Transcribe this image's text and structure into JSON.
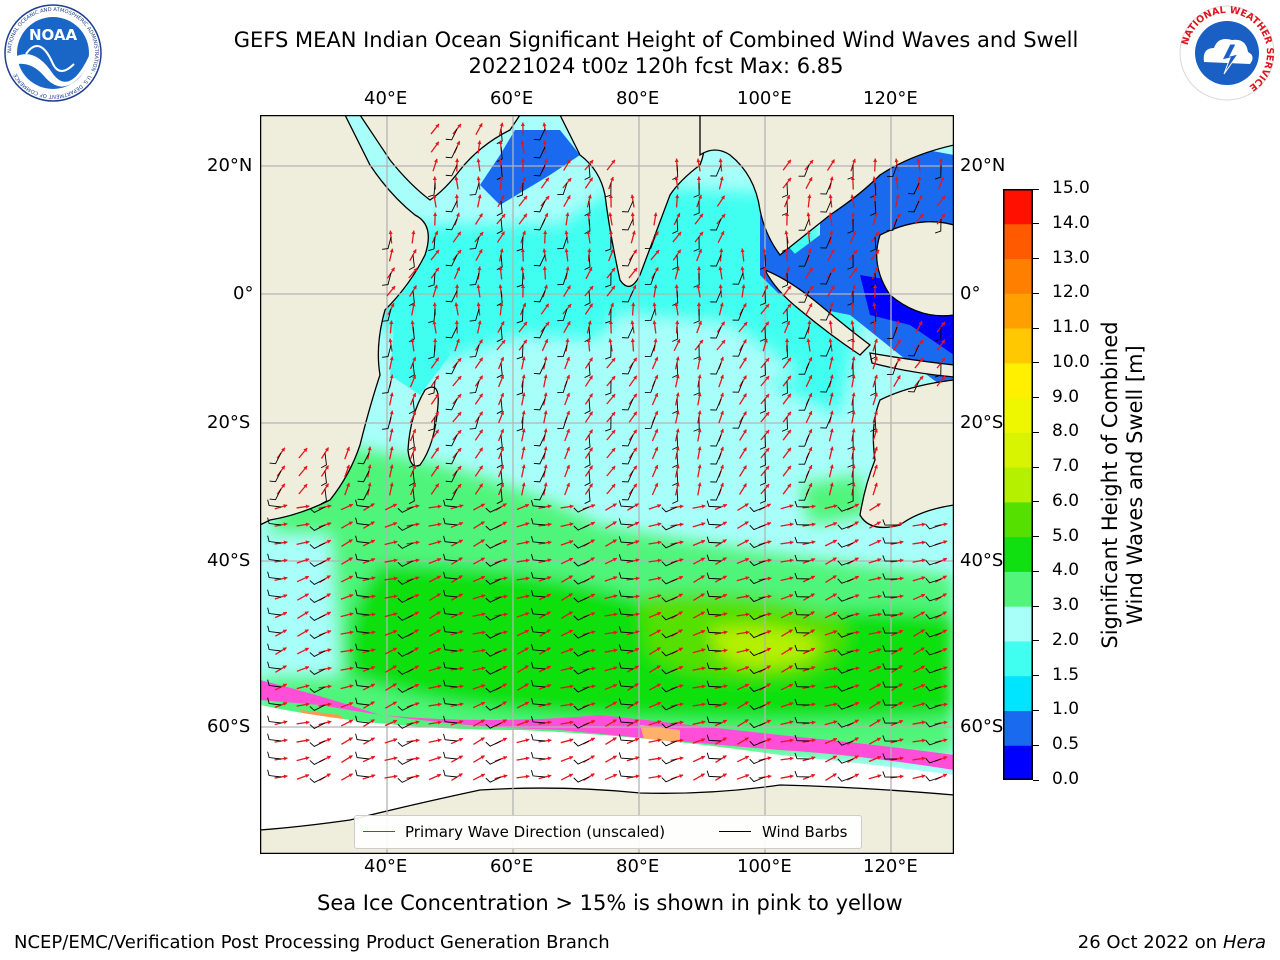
{
  "header": {
    "title_line1": "GEFS MEAN Indian Ocean Significant Height of Combined Wind Waves and Swell",
    "title_line2": "20221024 t00z 120h fcst   Max: 6.85"
  },
  "logos": {
    "left": {
      "text": "NOAA",
      "ring_text": "NATIONAL OCEANIC AND ATMOSPHERIC ADMINISTRATION · U.S. DEPARTMENT OF COMMERCE"
    },
    "right": {
      "ring_text": "NATIONAL WEATHER SERVICE"
    }
  },
  "map": {
    "lon_labels": [
      "40°E",
      "60°E",
      "80°E",
      "100°E",
      "120°E"
    ],
    "lat_labels": [
      "20°N",
      "0°",
      "20°S",
      "40°S",
      "60°S"
    ],
    "legend": {
      "wave_direction": "Primary Wave Direction (unscaled)",
      "wind_barbs": "Wind Barbs"
    },
    "colors": {
      "land": "#efeedc",
      "ice": "#ffffff",
      "wave_arrow": "#e8141b",
      "barb": "#000000"
    }
  },
  "colorbar": {
    "label_line1": "Significant Height of Combined",
    "label_line2": "Wind Waves and Swell [m]",
    "ticks": [
      "0.0",
      "0.5",
      "1.0",
      "1.5",
      "2.0",
      "3.0",
      "4.0",
      "5.0",
      "6.0",
      "7.0",
      "8.0",
      "9.0",
      "10.0",
      "11.0",
      "12.0",
      "13.0",
      "14.0",
      "15.0"
    ],
    "colors": [
      "#0000ff",
      "#1a6af0",
      "#00e5ff",
      "#40fff0",
      "#a8fffa",
      "#50f57a",
      "#10e010",
      "#55e000",
      "#b4f000",
      "#d8f400",
      "#eef600",
      "#fff000",
      "#ffc800",
      "#ffa000",
      "#ff8000",
      "#ff5a00",
      "#ff1000"
    ]
  },
  "footer": {
    "note": "Sea Ice Concentration > 15% is shown in pink to yellow",
    "left": "NCEP/EMC/Verification Post Processing Product Generation Branch",
    "right_prefix": "26 Oct 2022 on ",
    "right_host": "Hera"
  }
}
